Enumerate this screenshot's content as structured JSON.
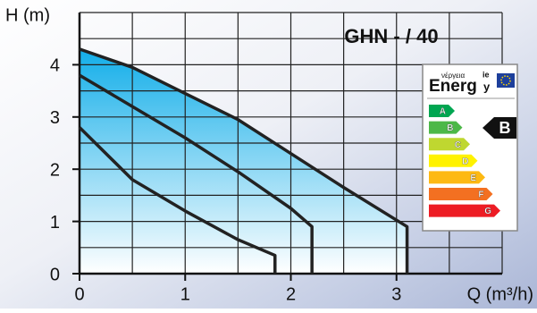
{
  "chart_data": {
    "type": "line",
    "title": "GHN - / 40",
    "y_label": "H (m)",
    "x_label": "Q (m³/h)",
    "xlim": [
      0,
      4
    ],
    "ylim": [
      0,
      5
    ],
    "xticks": [
      0,
      1,
      2,
      3
    ],
    "yticks": [
      0,
      1,
      2,
      3,
      4
    ],
    "xgrid": [
      0,
      0.5,
      1,
      1.5,
      2,
      2.5,
      3,
      3.5,
      4
    ],
    "ygrid": [
      0,
      0.5,
      1,
      1.5,
      2,
      2.5,
      3,
      3.5,
      4,
      4.5,
      5
    ],
    "grid": true,
    "fill_color": "#13aee9",
    "series": [
      {
        "color": "#222222",
        "x": [
          0,
          0.5,
          1,
          1.5,
          1.85,
          1.85
        ],
        "values": [
          2.8,
          1.8,
          1.2,
          0.65,
          0.35,
          0
        ]
      },
      {
        "color": "#222222",
        "x": [
          0,
          0.5,
          1,
          1.5,
          2,
          2.2,
          2.2
        ],
        "values": [
          3.8,
          3.2,
          2.6,
          1.95,
          1.25,
          0.9,
          0
        ]
      },
      {
        "color": "#222222",
        "fill": true,
        "x": [
          0,
          0.5,
          1,
          1.5,
          2,
          2.5,
          3.1,
          3.1
        ],
        "values": [
          4.3,
          3.95,
          3.45,
          2.95,
          2.3,
          1.65,
          0.9,
          0
        ]
      }
    ]
  },
  "energy_label": {
    "greek": "νέργεια",
    "heading": "Energ",
    "heading_ie": "ie",
    "heading_y": "y",
    "classes": [
      {
        "label": "A",
        "color": "#00a651"
      },
      {
        "label": "B",
        "color": "#4cb848"
      },
      {
        "label": "C",
        "color": "#bfd730"
      },
      {
        "label": "D",
        "color": "#fff200"
      },
      {
        "label": "E",
        "color": "#fdb913"
      },
      {
        "label": "F",
        "color": "#f37021"
      },
      {
        "label": "G",
        "color": "#ed1c24"
      }
    ],
    "rating": "B"
  }
}
